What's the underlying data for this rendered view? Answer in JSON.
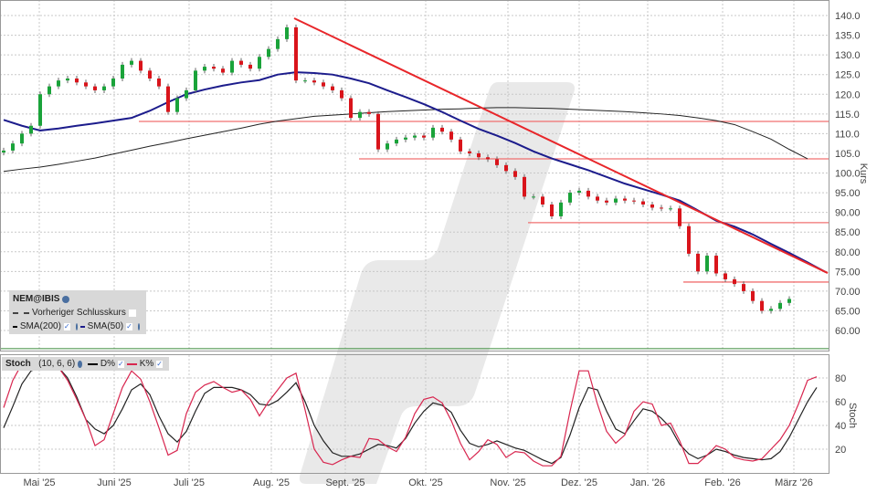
{
  "chart_data": [
    {
      "type": "candlestick",
      "instrument": "NEM@IBIS",
      "ylabel": "Kurs",
      "ylim": [
        55,
        141
      ],
      "yticks": [
        "140.0",
        "135.0",
        "130.0",
        "125.0",
        "120.0",
        "115.0",
        "110.0",
        "105.0",
        "100.0",
        "95.00",
        "90.00",
        "85.00",
        "80.00",
        "75.00",
        "70.00",
        "65.00",
        "60.00"
      ],
      "ytick_values": [
        140,
        135,
        130,
        125,
        120,
        115,
        110,
        105,
        100,
        95,
        90,
        85,
        80,
        75,
        70,
        65,
        60
      ],
      "xticks": [
        "Mai '25",
        "Juni '25",
        "Juli '25",
        "Aug. '25",
        "Sept. '25",
        "Okt. '25",
        "Nov. '25",
        "Dez. '25",
        "Jan. '26",
        "Feb. '26",
        "März '26"
      ],
      "grid": true,
      "legend_placement": "bottom-left",
      "legend": {
        "title": "NEM@IBIS",
        "prev_close": "Vorheriger Schlusskurs",
        "sma200": "SMA(200)",
        "sma50": "SMA(50)"
      },
      "closes": [
        105.7,
        107.5,
        110,
        112,
        120,
        122,
        123.5,
        124,
        123,
        122,
        121,
        122,
        124,
        127.5,
        128.5,
        126,
        124,
        122,
        115.5,
        119,
        121,
        126,
        127,
        126.5,
        125.5,
        128.5,
        127.5,
        126.5,
        129.5,
        131.5,
        134,
        137,
        123.5,
        123.5,
        123,
        122,
        121,
        119,
        114,
        115.5,
        115,
        106,
        107.5,
        108.5,
        109,
        109.5,
        109,
        111.5,
        110.5,
        108.5,
        105.5,
        105,
        104,
        103.5,
        102,
        100.5,
        99,
        94,
        94,
        92,
        89,
        92.5,
        95,
        95.5,
        94,
        93,
        92.5,
        93.5,
        93,
        92.8,
        92,
        91.2,
        91,
        91,
        86.5,
        79.5,
        75,
        79,
        74.5,
        73,
        71.8,
        70,
        67.5,
        65,
        65.5,
        67,
        68
      ],
      "sma50": [
        113.5,
        112,
        110.8,
        111.3,
        112,
        112.6,
        113.3,
        114,
        115.8,
        118,
        120,
        121.2,
        122.2,
        123,
        123.6,
        125,
        125.6,
        125.4,
        125,
        124,
        122.8,
        121,
        119.3,
        117.5,
        115.5,
        113.3,
        111.2,
        109.5,
        107.6,
        105.5,
        103.7,
        102.2,
        100.7,
        99,
        97.3,
        95.9,
        94.5,
        93,
        90.5,
        87.9,
        86.4,
        84.4,
        82,
        79.7,
        77.3,
        74.8
      ],
      "sma200": [
        100.4,
        101,
        101.5,
        102.2,
        103,
        103.8,
        104.8,
        105.8,
        106.8,
        107.7,
        108.7,
        109.6,
        110.5,
        111.4,
        112.4,
        113.2,
        113.8,
        114.4,
        114.7,
        115,
        115.3,
        115.6,
        115.8,
        116,
        116.2,
        116.3,
        116.5,
        116.6,
        116.6,
        116.5,
        116.4,
        116.2,
        116,
        115.8,
        115.6,
        115.3,
        115,
        114.6,
        114,
        113.3,
        112.3,
        110.5,
        108.6,
        106,
        103.6
      ],
      "trendline": {
        "from": 139.3,
        "to": 74.6,
        "color": "#e8262a"
      },
      "support_resistance_levels": [
        113.1,
        103.6,
        87.4,
        72.3
      ],
      "reference_line": 55.4,
      "colors": {
        "up": "#1aa33a",
        "down": "#d9141b",
        "sma50": "#1c1c8c",
        "sma200": "#222222",
        "levels": "#f07070",
        "reference": "#3a8a3a"
      }
    },
    {
      "type": "line",
      "title": "Stoch",
      "params": "(10, 6, 6)",
      "ylabel": "Stoch",
      "ylim": [
        0,
        100
      ],
      "yticks": [
        "80",
        "60",
        "40",
        "20"
      ],
      "ytick_values": [
        80,
        60,
        40,
        20
      ],
      "grid": true,
      "legend_placement": "top-left",
      "series": [
        {
          "name": "D%",
          "color": "#222222",
          "values": [
            38,
            56,
            75,
            86,
            89,
            89,
            89,
            80,
            64,
            45,
            37,
            33,
            40,
            54,
            70,
            75,
            66,
            48,
            33,
            26,
            35,
            52,
            67,
            72,
            72,
            72,
            70,
            66,
            58,
            57,
            61,
            68,
            76,
            60,
            40,
            27,
            17,
            14,
            14,
            16,
            20,
            24,
            23,
            21,
            29,
            42,
            52,
            59,
            57,
            51,
            36,
            25,
            22,
            24,
            27,
            24,
            21,
            19,
            15,
            11,
            8,
            13,
            32,
            55,
            72,
            70,
            52,
            37,
            33,
            44,
            54,
            52,
            46,
            38,
            24,
            16,
            12,
            15,
            20,
            18,
            15,
            13,
            12,
            11,
            12,
            18,
            30,
            45,
            60,
            72
          ]
        },
        {
          "name": "K%",
          "color": "#d8264f",
          "values": [
            55,
            78,
            92,
            91,
            90,
            90,
            89,
            78,
            62,
            45,
            23,
            28,
            50,
            72,
            86,
            79,
            60,
            38,
            15,
            19,
            50,
            68,
            74,
            77,
            72,
            68,
            70,
            62,
            48,
            60,
            70,
            80,
            84,
            53,
            20,
            9,
            7,
            11,
            14,
            13,
            29,
            28,
            22,
            18,
            30,
            50,
            62,
            64,
            59,
            44,
            25,
            11,
            18,
            28,
            24,
            13,
            18,
            17,
            10,
            6,
            6,
            14,
            52,
            86,
            86,
            58,
            35,
            25,
            32,
            52,
            60,
            58,
            40,
            42,
            27,
            8,
            8,
            15,
            23,
            20,
            13,
            11,
            10,
            12,
            20,
            28,
            40,
            58,
            78,
            81
          ]
        }
      ]
    }
  ]
}
